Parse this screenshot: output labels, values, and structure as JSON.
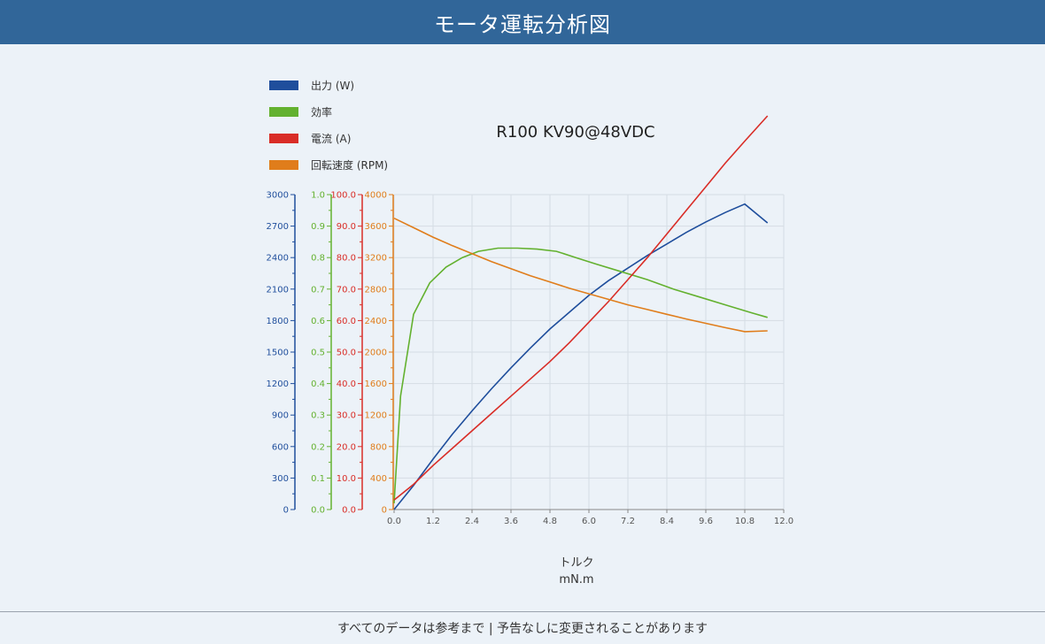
{
  "page": {
    "title": "モータ運転分析図",
    "footer": "すべてのデータは参考まで | 予告なしに変更されることがあります"
  },
  "chart_data": {
    "type": "line",
    "title": "R100 KV90@48VDC",
    "xlabel": "トルク",
    "xunit": "mN.m",
    "xlim": [
      0,
      12
    ],
    "xticks": [
      "0.0",
      "1.2",
      "2.4",
      "3.6",
      "4.8",
      "6.0",
      "7.2",
      "8.4",
      "9.6",
      "10.8",
      "12.0"
    ],
    "grid": true,
    "legend_position": "top-left",
    "axes": [
      {
        "series": "出力 (W)",
        "color": "#1f4e9c",
        "ylim": [
          0,
          3000
        ],
        "ticks": [
          "0",
          "300",
          "600",
          "900",
          "1200",
          "1500",
          "1800",
          "2100",
          "2400",
          "2700",
          "3000"
        ]
      },
      {
        "series": "効率",
        "color": "#63b12f",
        "ylim": [
          0,
          1
        ],
        "ticks": [
          "0.0",
          "0.1",
          "0.2",
          "0.3",
          "0.4",
          "0.5",
          "0.6",
          "0.7",
          "0.8",
          "0.9",
          "1.0"
        ]
      },
      {
        "series": "電流 (A)",
        "color": "#d92d27",
        "ylim": [
          0,
          100
        ],
        "ticks": [
          "0.0",
          "10.0",
          "20.0",
          "30.0",
          "40.0",
          "50.0",
          "60.0",
          "70.0",
          "80.0",
          "90.0",
          "100.0"
        ]
      },
      {
        "series": "回転速度 (RPM)",
        "color": "#e07d1b",
        "ylim": [
          0,
          4000
        ],
        "ticks": [
          "0",
          "400",
          "800",
          "1200",
          "1600",
          "2000",
          "2400",
          "2800",
          "3200",
          "3600",
          "4000"
        ]
      }
    ],
    "series": [
      {
        "name": "出力 (W)",
        "color": "#1f4e9c",
        "axis": 0,
        "x": [
          0,
          0.6,
          1.2,
          1.8,
          2.4,
          3.0,
          3.6,
          4.2,
          4.8,
          5.4,
          6.0,
          6.6,
          7.2,
          7.8,
          8.4,
          9.0,
          9.6,
          10.2,
          10.8,
          11.5
        ],
        "y": [
          0,
          230,
          480,
          720,
          940,
          1150,
          1350,
          1540,
          1720,
          1880,
          2040,
          2180,
          2300,
          2420,
          2530,
          2640,
          2740,
          2830,
          2910,
          2730
        ]
      },
      {
        "name": "効率",
        "color": "#63b12f",
        "axis": 1,
        "x": [
          0,
          0.2,
          0.6,
          1.1,
          1.6,
          2.1,
          2.6,
          3.2,
          3.8,
          4.4,
          5.0,
          5.6,
          6.2,
          7.0,
          7.8,
          8.6,
          9.4,
          10.2,
          11.0,
          11.5
        ],
        "y": [
          0.02,
          0.36,
          0.62,
          0.72,
          0.77,
          0.8,
          0.82,
          0.83,
          0.83,
          0.827,
          0.82,
          0.8,
          0.78,
          0.755,
          0.73,
          0.7,
          0.675,
          0.65,
          0.625,
          0.61
        ]
      },
      {
        "name": "電流 (A)",
        "color": "#d92d27",
        "axis": 2,
        "x": [
          0,
          0.6,
          1.2,
          1.8,
          2.4,
          3.0,
          3.6,
          4.2,
          4.8,
          5.4,
          6.0,
          6.6,
          7.2,
          7.8,
          8.4,
          9.0,
          9.6,
          10.2,
          10.8,
          11.5
        ],
        "y": [
          3,
          8,
          14,
          19.5,
          25,
          30.5,
          36,
          41.5,
          47,
          53,
          59.5,
          66,
          73,
          80,
          87.5,
          95,
          102.5,
          110,
          117,
          125
        ]
      },
      {
        "name": "回転速度 (RPM)",
        "color": "#e07d1b",
        "axis": 3,
        "x": [
          0,
          0.6,
          1.2,
          1.8,
          2.4,
          3.0,
          3.6,
          4.2,
          4.8,
          5.4,
          6.0,
          6.6,
          7.2,
          7.8,
          8.4,
          9.0,
          9.6,
          10.2,
          10.8,
          11.5
        ],
        "y": [
          3700,
          3580,
          3460,
          3350,
          3250,
          3150,
          3060,
          2970,
          2890,
          2810,
          2740,
          2670,
          2600,
          2540,
          2480,
          2420,
          2365,
          2310,
          2260,
          2270
        ]
      }
    ]
  }
}
